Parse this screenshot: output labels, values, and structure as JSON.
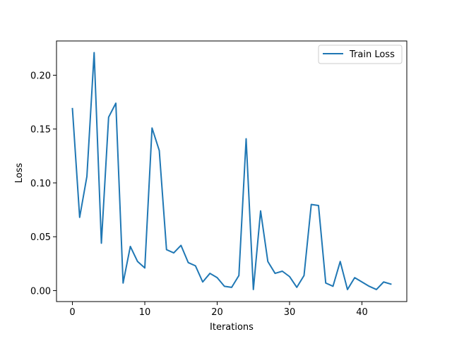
{
  "chart_data": {
    "type": "line",
    "title": "",
    "xlabel": "Iterations",
    "ylabel": "Loss",
    "xlim": [
      -2.2,
      46.2
    ],
    "ylim": [
      -0.0102,
      0.2318
    ],
    "xticks": [
      0,
      10,
      20,
      30,
      40
    ],
    "xtick_labels": [
      "0",
      "10",
      "20",
      "30",
      "40"
    ],
    "yticks": [
      0.0,
      0.05,
      0.1,
      0.15,
      0.2
    ],
    "ytick_labels": [
      "0.00",
      "0.05",
      "0.10",
      "0.15",
      "0.20"
    ],
    "grid": false,
    "legend_position": "upper right",
    "series": [
      {
        "name": "Train Loss",
        "color": "#1f77b4",
        "x": [
          0,
          1,
          2,
          3,
          4,
          5,
          6,
          7,
          8,
          9,
          10,
          11,
          12,
          13,
          14,
          15,
          16,
          17,
          18,
          19,
          20,
          21,
          22,
          23,
          24,
          25,
          26,
          27,
          28,
          29,
          30,
          31,
          32,
          33,
          34,
          35,
          36,
          37,
          38,
          39,
          40,
          41,
          42,
          43,
          44
        ],
        "y": [
          0.169,
          0.068,
          0.106,
          0.221,
          0.044,
          0.161,
          0.174,
          0.007,
          0.041,
          0.027,
          0.021,
          0.151,
          0.13,
          0.038,
          0.035,
          0.042,
          0.026,
          0.023,
          0.008,
          0.016,
          0.012,
          0.004,
          0.003,
          0.014,
          0.141,
          0.001,
          0.074,
          0.027,
          0.016,
          0.018,
          0.013,
          0.003,
          0.014,
          0.08,
          0.079,
          0.007,
          0.004,
          0.027,
          0.001,
          0.012,
          0.008,
          0.004,
          0.001,
          0.008,
          0.006
        ]
      }
    ]
  }
}
